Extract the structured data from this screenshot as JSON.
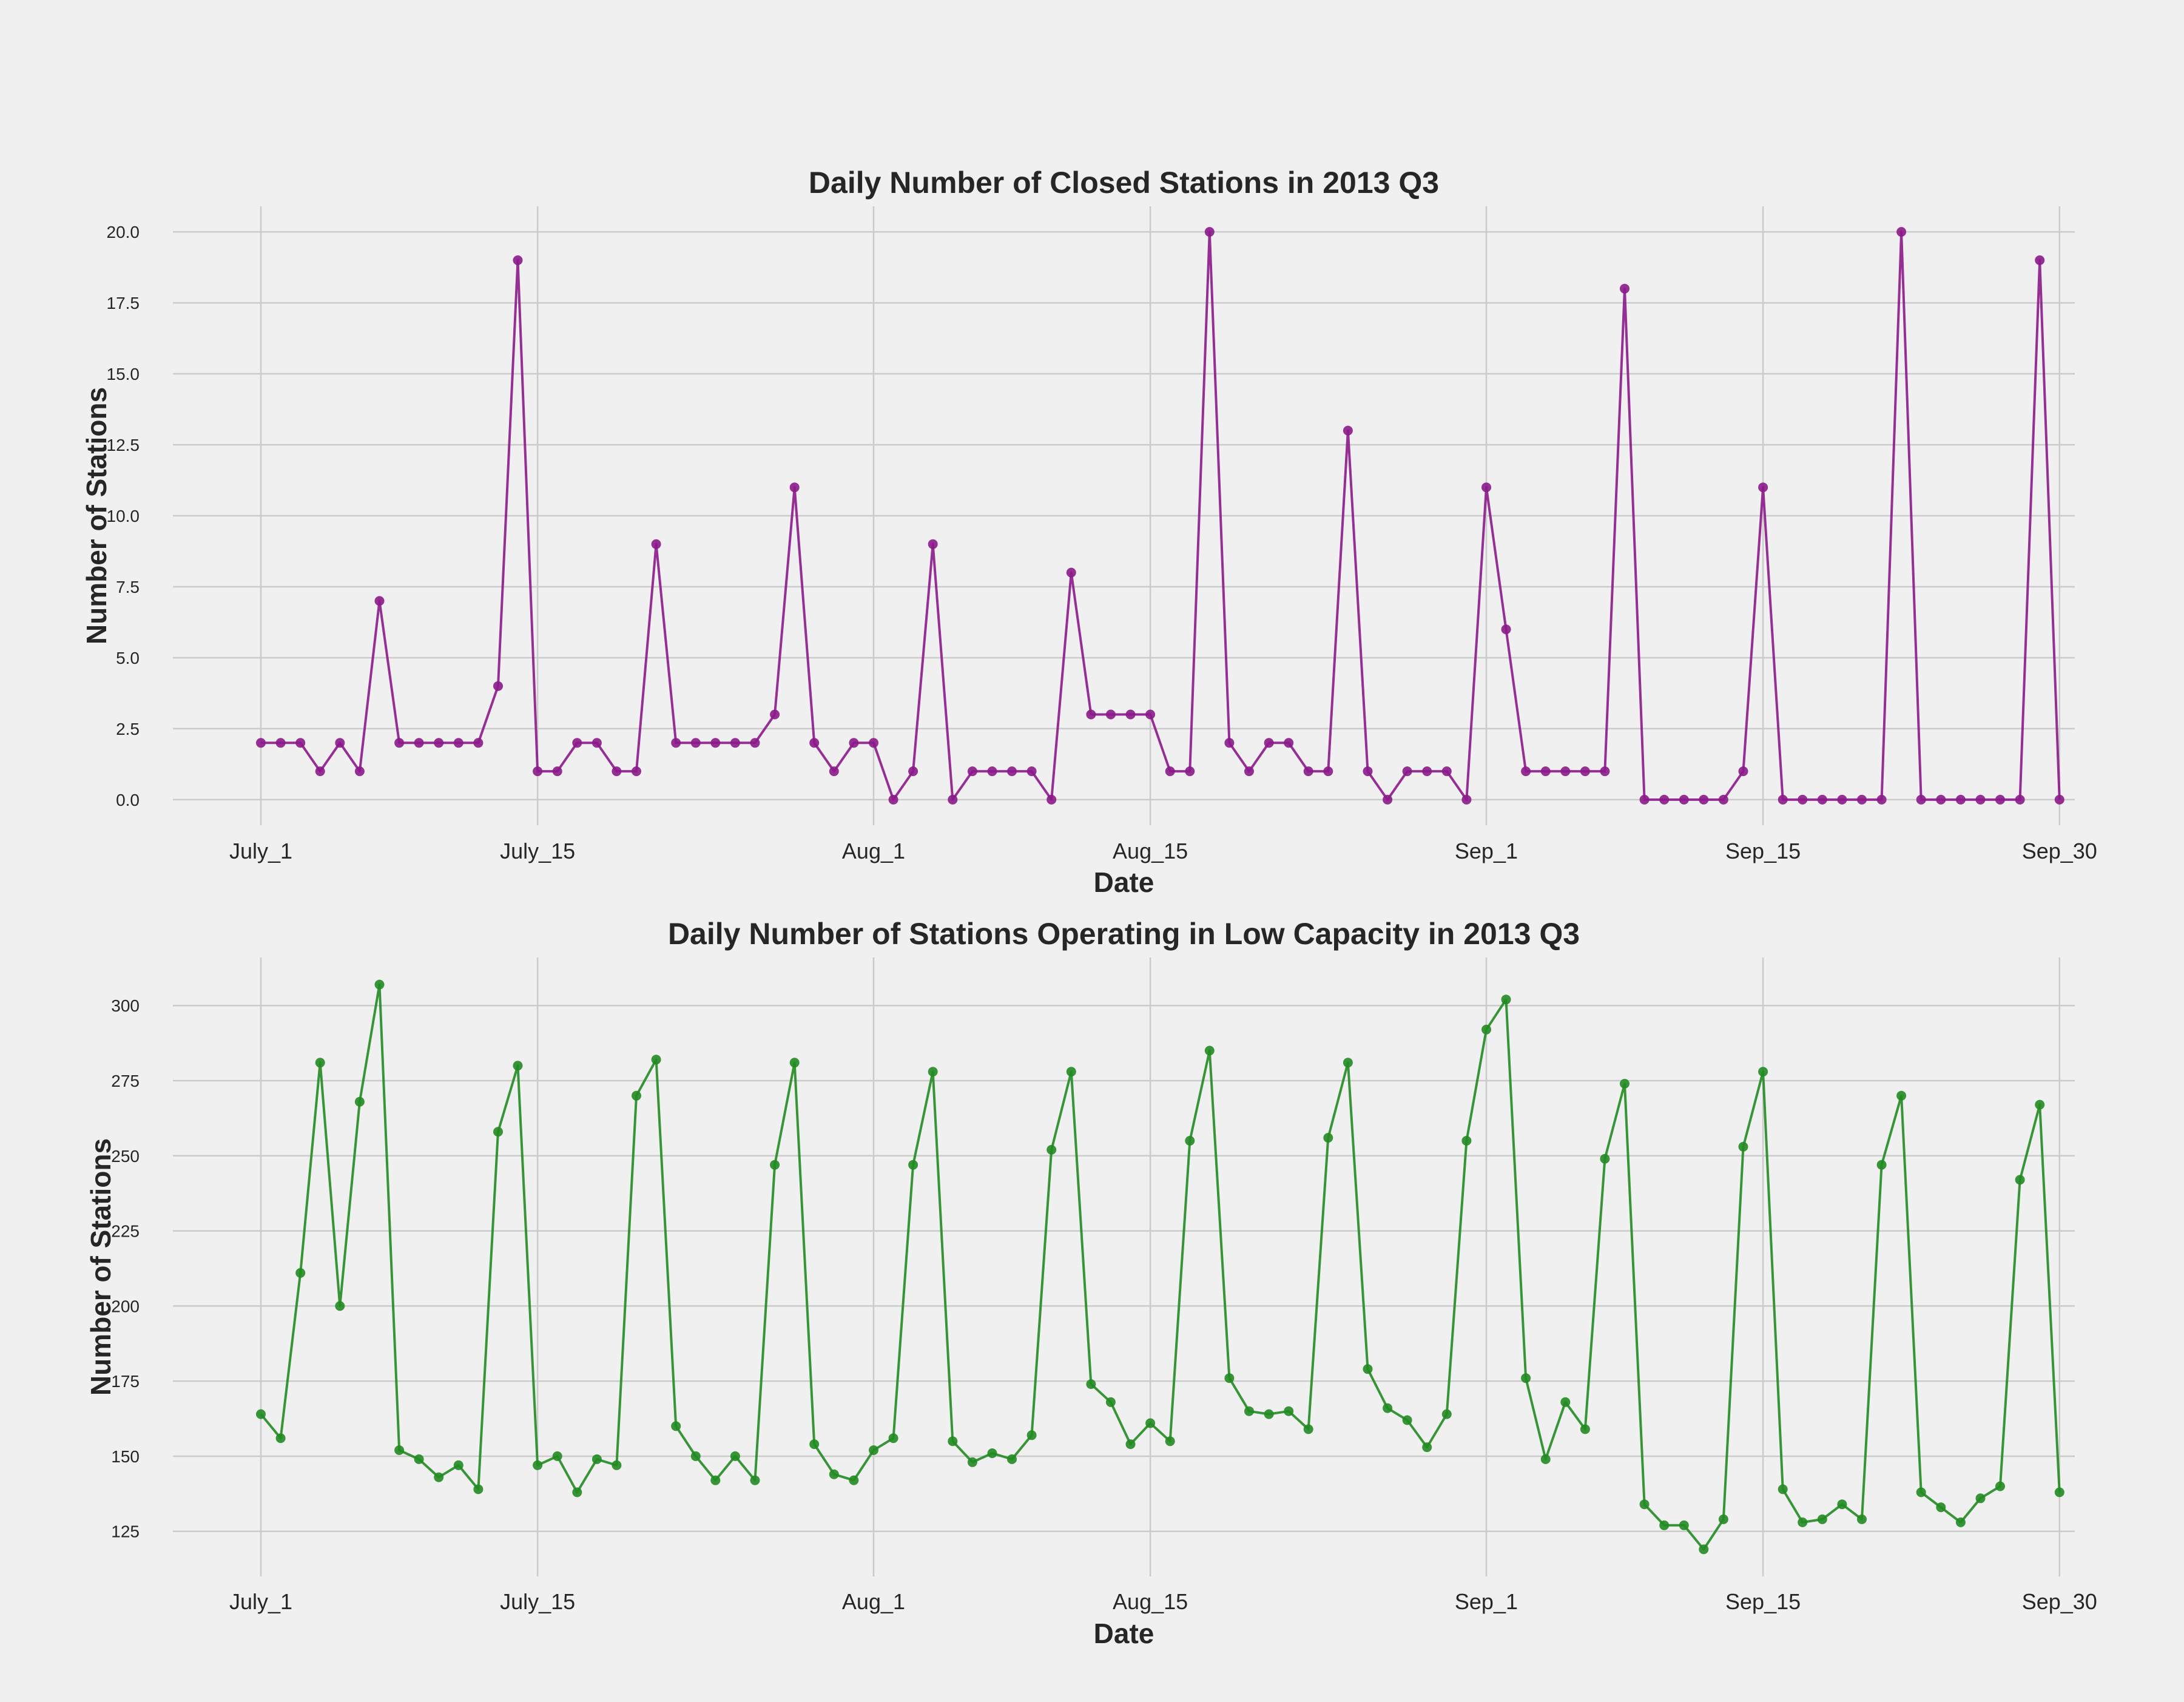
{
  "chart_data": [
    {
      "type": "line",
      "title": "Daily Number of Closed Stations in 2013 Q3",
      "xlabel": "Date",
      "ylabel": "Number of Stations",
      "x_start": "2013-07-01",
      "x_ticks": [
        {
          "label": "July_1",
          "date": "2013-07-01"
        },
        {
          "label": "July_15",
          "date": "2013-07-15"
        },
        {
          "label": "Aug_1",
          "date": "2013-08-01"
        },
        {
          "label": "Aug_15",
          "date": "2013-08-15"
        },
        {
          "label": "Sep_1",
          "date": "2013-09-01"
        },
        {
          "label": "Sep_15",
          "date": "2013-09-15"
        },
        {
          "label": "Sep_30",
          "date": "2013-09-30"
        }
      ],
      "y_ticks": [
        "0.0",
        "2.5",
        "5.0",
        "7.5",
        "10.0",
        "12.5",
        "15.0",
        "17.5",
        "20.0"
      ],
      "ylim": [
        -0.9,
        20.9
      ],
      "grid": true,
      "color": "#8b1a89",
      "values": [
        2,
        2,
        2,
        1,
        2,
        1,
        7,
        2,
        2,
        2,
        2,
        2,
        4,
        19,
        1,
        1,
        2,
        2,
        1,
        1,
        9,
        2,
        2,
        2,
        2,
        2,
        3,
        11,
        2,
        1,
        2,
        2,
        0,
        1,
        9,
        0,
        1,
        1,
        1,
        1,
        0,
        8,
        3,
        3,
        3,
        3,
        1,
        1,
        20,
        2,
        1,
        2,
        2,
        1,
        1,
        13,
        1,
        0,
        1,
        1,
        1,
        0,
        11,
        6,
        1,
        1,
        1,
        1,
        1,
        18,
        0,
        0,
        0,
        0,
        0,
        1,
        11,
        0,
        0,
        0,
        0,
        0,
        0,
        20,
        0,
        0,
        0,
        0,
        0,
        0,
        19,
        0
      ]
    },
    {
      "type": "line",
      "title": "Daily Number of Stations Operating in Low Capacity in 2013 Q3",
      "xlabel": "Date",
      "ylabel": "Number of Stations",
      "x_start": "2013-07-01",
      "x_ticks": [
        {
          "label": "July_1",
          "date": "2013-07-01"
        },
        {
          "label": "July_15",
          "date": "2013-07-15"
        },
        {
          "label": "Aug_1",
          "date": "2013-08-01"
        },
        {
          "label": "Aug_15",
          "date": "2013-08-15"
        },
        {
          "label": "Sep_1",
          "date": "2013-09-01"
        },
        {
          "label": "Sep_15",
          "date": "2013-09-15"
        },
        {
          "label": "Sep_30",
          "date": "2013-09-30"
        }
      ],
      "y_ticks": [
        "125",
        "150",
        "175",
        "200",
        "225",
        "250",
        "275",
        "300"
      ],
      "ylim": [
        110,
        316
      ],
      "grid": true,
      "color": "#228b22",
      "values": [
        164,
        156,
        211,
        281,
        200,
        268,
        307,
        152,
        149,
        143,
        147,
        139,
        258,
        280,
        147,
        150,
        138,
        149,
        147,
        270,
        282,
        160,
        150,
        142,
        150,
        142,
        247,
        281,
        154,
        144,
        142,
        152,
        156,
        247,
        278,
        155,
        148,
        151,
        149,
        157,
        252,
        278,
        174,
        168,
        154,
        161,
        155,
        255,
        285,
        176,
        165,
        164,
        165,
        159,
        256,
        281,
        179,
        166,
        162,
        153,
        164,
        255,
        292,
        302,
        176,
        149,
        168,
        159,
        249,
        274,
        134,
        127,
        127,
        119,
        129,
        253,
        278,
        139,
        128,
        129,
        134,
        129,
        247,
        270,
        138,
        133,
        128,
        136,
        140,
        242,
        267,
        138
      ]
    }
  ]
}
